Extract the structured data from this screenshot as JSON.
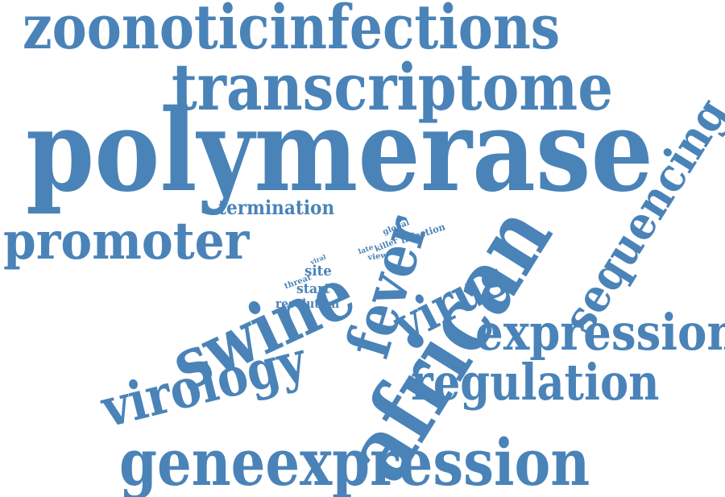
{
  "accent_color": "#4a83b8",
  "background_color": "#ffffff",
  "words": {
    "zoonoticinfections": "zoonoticinfections",
    "transcriptome": "transcriptome",
    "polymerase": "polymerase",
    "sequencing": "sequencing",
    "termination": "termination",
    "promoter": "promoter",
    "swine": "swine",
    "fever": "fever",
    "virus": "virus",
    "african": "african",
    "virology": "virology",
    "expression": "expression",
    "regulation": "regulation",
    "geneexpression": "geneexpression",
    "global": "global",
    "infection": "infection",
    "late": "late",
    "killer": "killer",
    "view": "view",
    "viral": "viral",
    "threat": "threat",
    "site": "site",
    "start": "start",
    "resolution": "resolution"
  }
}
